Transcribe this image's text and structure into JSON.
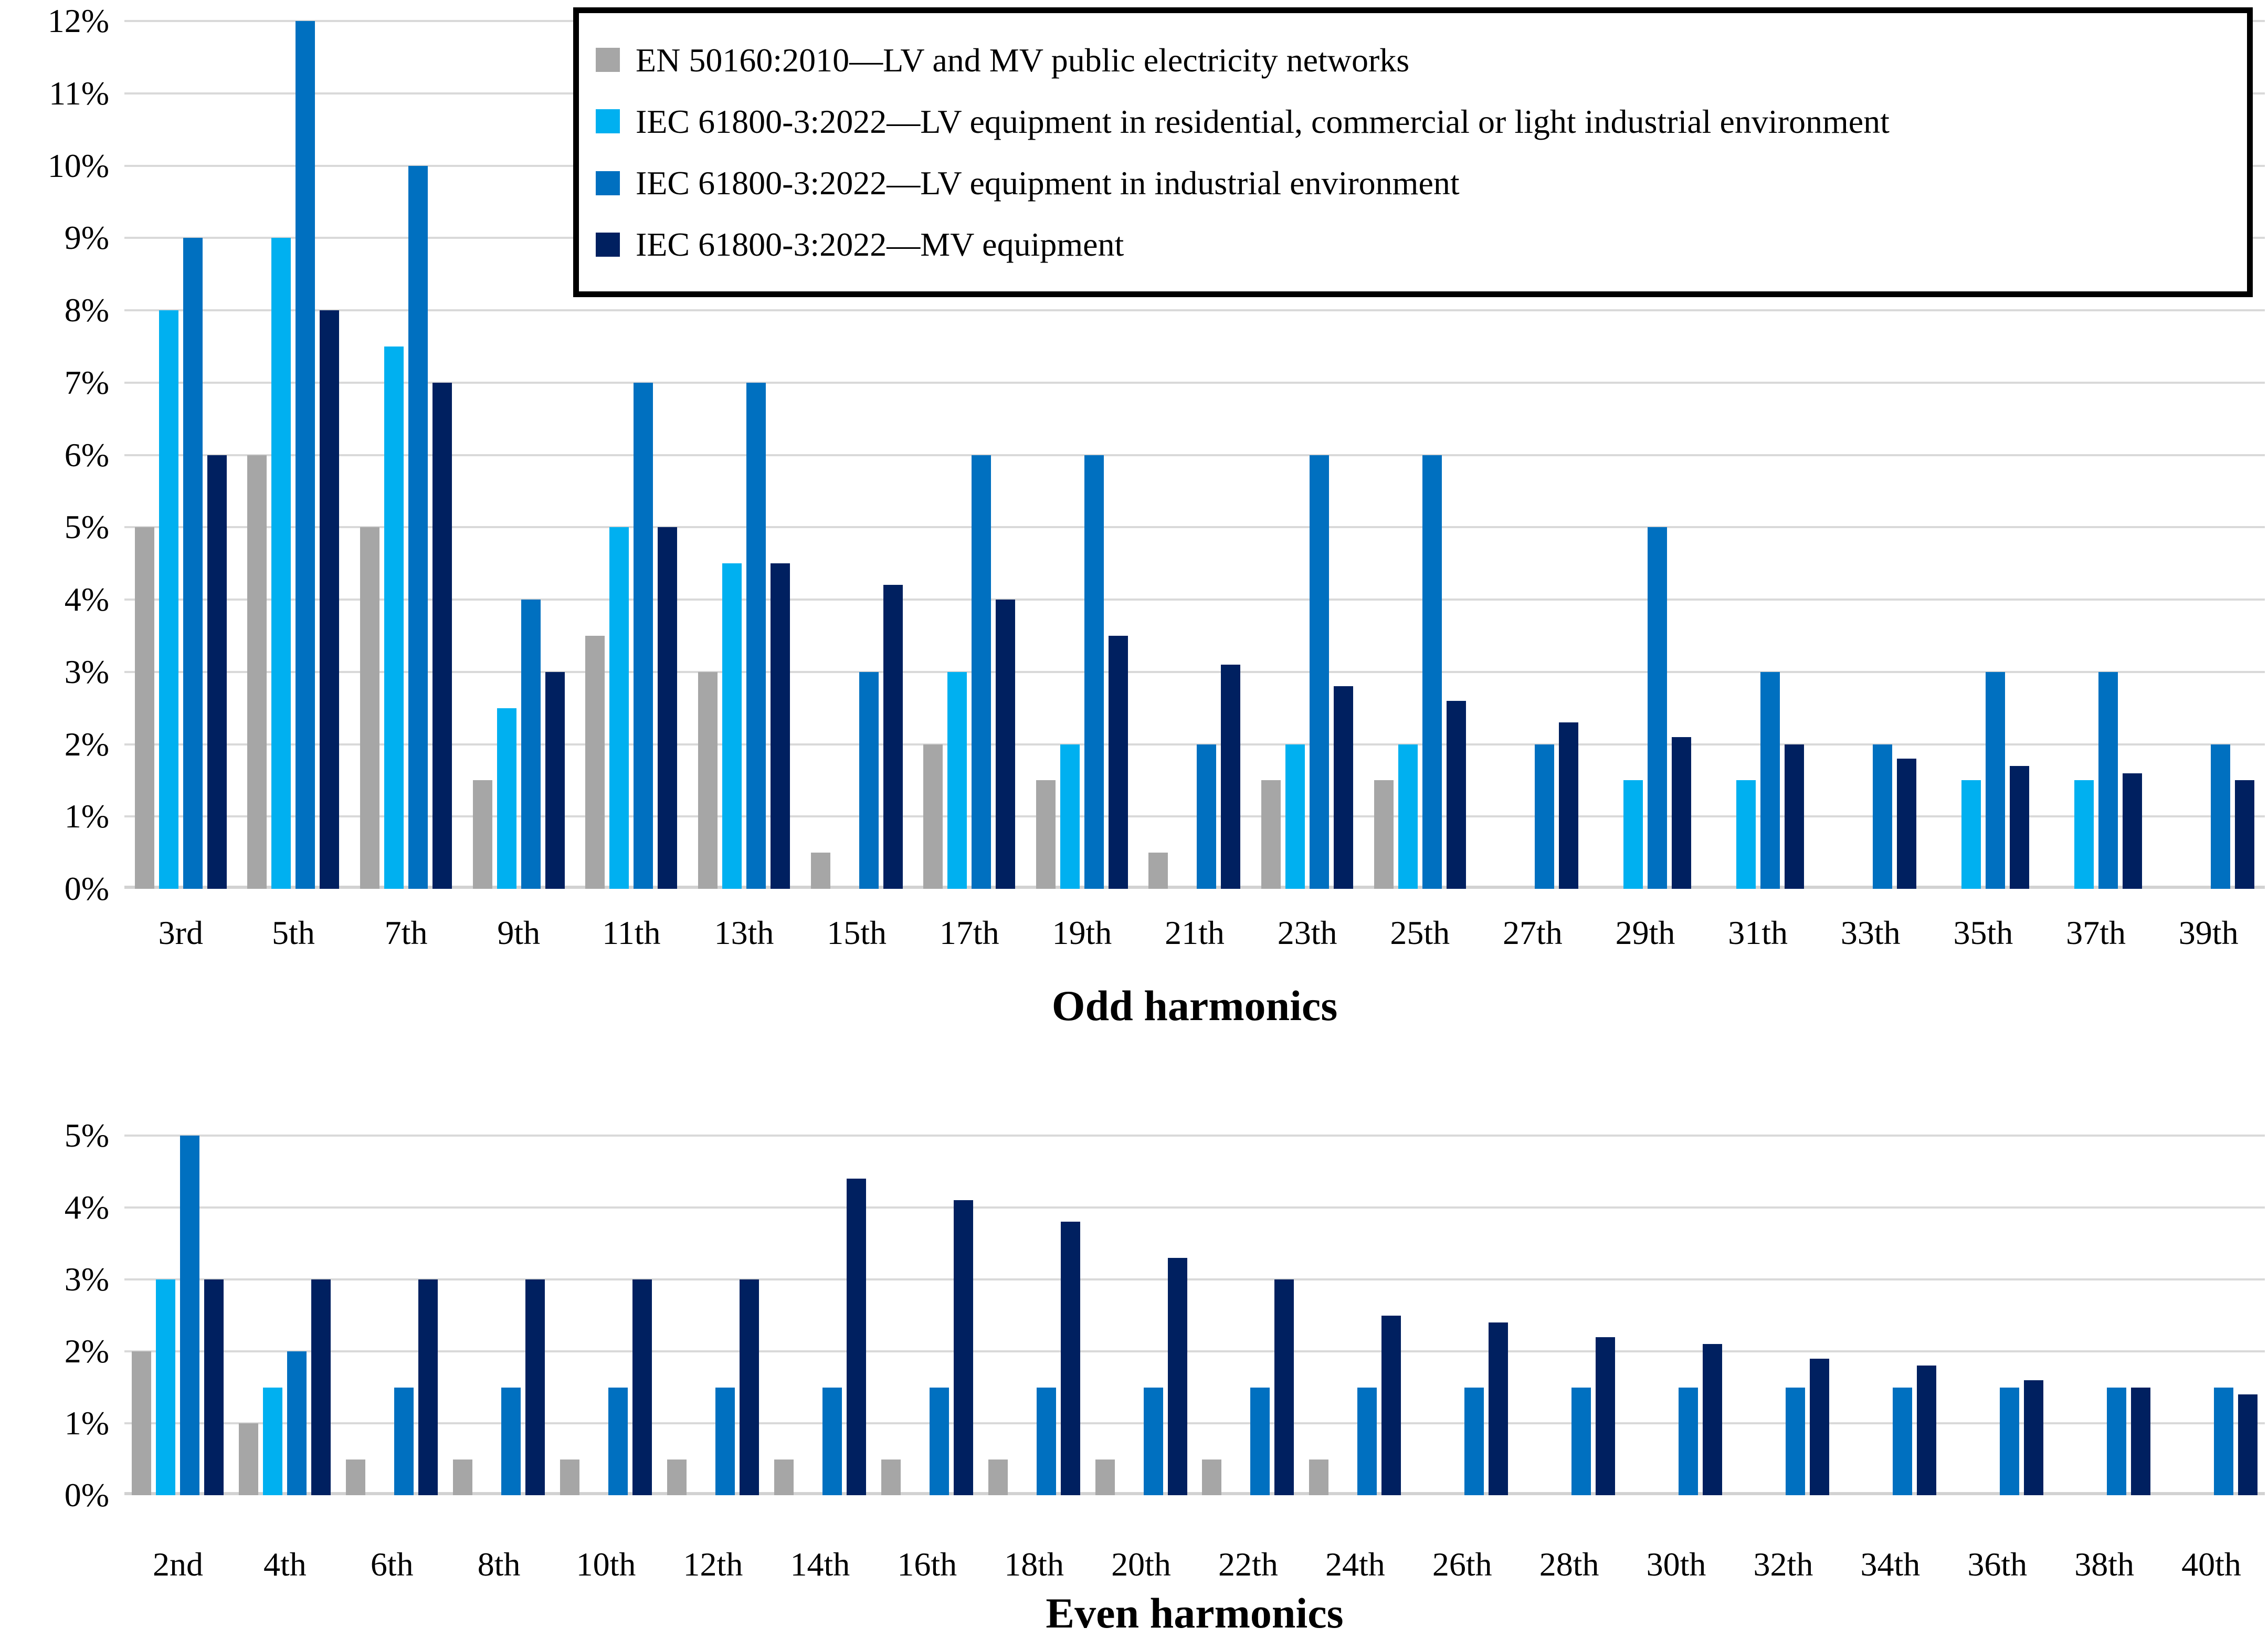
{
  "figure": {
    "background_color": "#FFFFFF",
    "gridline_color": "#D9D9D9",
    "text_color": "#000000"
  },
  "legend": {
    "items": [
      {
        "label": "EN 50160:2010—LV and MV public electricity networks",
        "color": "#A6A6A6",
        "swatch_icon": "square-swatch-icon"
      },
      {
        "label": "IEC 61800-3:2022—LV equipment in residential, commercial or light industrial environment",
        "color": "#00B0F0",
        "swatch_icon": "square-swatch-icon"
      },
      {
        "label": "IEC 61800-3:2022—LV equipment in industrial environment",
        "color": "#0070C0",
        "swatch_icon": "square-swatch-icon"
      },
      {
        "label": "IEC 61800-3:2022—MV equipment",
        "color": "#002060",
        "swatch_icon": "square-swatch-icon"
      }
    ]
  },
  "chart_data": [
    {
      "type": "bar",
      "title": "",
      "xlabel": "Odd harmonics",
      "ylabel": "",
      "ylim": [
        0,
        12
      ],
      "ytick_step": 1,
      "grid": "horizontal",
      "legend_position": "top-right-overlay",
      "ytick_labels": [
        "0%",
        "1%",
        "2%",
        "3%",
        "4%",
        "5%",
        "6%",
        "7%",
        "8%",
        "9%",
        "10%",
        "11%",
        "12%"
      ],
      "categories": [
        "3rd",
        "5th",
        "7th",
        "9th",
        "11th",
        "13th",
        "15th",
        "17th",
        "19th",
        "21th",
        "23th",
        "25th",
        "27th",
        "29th",
        "31th",
        "33th",
        "35th",
        "37th",
        "39th"
      ],
      "series": [
        {
          "name": "EN 50160:2010—LV and MV public electricity networks",
          "color": "#A6A6A6",
          "values": [
            5,
            6,
            5,
            1.5,
            3.5,
            3,
            0.5,
            2,
            1.5,
            0.5,
            1.5,
            1.5,
            null,
            null,
            null,
            null,
            null,
            null,
            null
          ]
        },
        {
          "name": "IEC 61800-3:2022—LV equipment in residential, commercial or light industrial environment",
          "color": "#00B0F0",
          "values": [
            8,
            9,
            7.5,
            2.5,
            5,
            4.5,
            null,
            3,
            2,
            null,
            2,
            2,
            null,
            1.5,
            1.5,
            null,
            1.5,
            1.5,
            null
          ]
        },
        {
          "name": "IEC 61800-3:2022—LV equipment in industrial environment",
          "color": "#0070C0",
          "values": [
            9,
            12,
            10,
            4,
            7,
            7,
            3,
            6,
            6,
            2,
            6,
            6,
            2,
            5,
            3,
            2,
            3,
            3,
            2
          ]
        },
        {
          "name": "IEC 61800-3:2022—MV equipment",
          "color": "#002060",
          "values": [
            6,
            8,
            7,
            3,
            5,
            4.5,
            4.2,
            4,
            3.5,
            3.1,
            2.8,
            2.6,
            2.3,
            2.1,
            2,
            1.8,
            1.7,
            1.6,
            1.5
          ]
        }
      ]
    },
    {
      "type": "bar",
      "title": "",
      "xlabel": "Even harmonics",
      "ylabel": "",
      "ylim": [
        0,
        5
      ],
      "ytick_step": 1,
      "grid": "horizontal",
      "legend_position": "none",
      "ytick_labels": [
        "0%",
        "1%",
        "2%",
        "3%",
        "4%",
        "5%"
      ],
      "categories": [
        "2nd",
        "4th",
        "6th",
        "8th",
        "10th",
        "12th",
        "14th",
        "16th",
        "18th",
        "20th",
        "22th",
        "24th",
        "26th",
        "28th",
        "30th",
        "32th",
        "34th",
        "36th",
        "38th",
        "40th"
      ],
      "series": [
        {
          "name": "EN 50160:2010—LV and MV public electricity networks",
          "color": "#A6A6A6",
          "values": [
            2,
            1,
            0.5,
            0.5,
            0.5,
            0.5,
            0.5,
            0.5,
            0.5,
            0.5,
            0.5,
            0.5,
            null,
            null,
            null,
            null,
            null,
            null,
            null,
            null
          ]
        },
        {
          "name": "IEC 61800-3:2022—LV equipment in residential, commercial or light industrial environment",
          "color": "#00B0F0",
          "values": [
            3,
            1.5,
            null,
            null,
            null,
            null,
            null,
            null,
            null,
            null,
            null,
            null,
            null,
            null,
            null,
            null,
            null,
            null,
            null,
            null
          ]
        },
        {
          "name": "IEC 61800-3:2022—LV equipment in industrial environment",
          "color": "#0070C0",
          "values": [
            5,
            2,
            1.5,
            1.5,
            1.5,
            1.5,
            1.5,
            1.5,
            1.5,
            1.5,
            1.5,
            1.5,
            1.5,
            1.5,
            1.5,
            1.5,
            1.5,
            1.5,
            1.5,
            1.5
          ]
        },
        {
          "name": "IEC 61800-3:2022—MV equipment",
          "color": "#002060",
          "values": [
            3,
            3,
            3,
            3,
            3,
            3,
            4.4,
            4.1,
            3.8,
            3.3,
            3,
            2.5,
            2.4,
            2.2,
            2.1,
            1.9,
            1.8,
            1.6,
            1.5,
            1.4
          ]
        }
      ]
    }
  ]
}
